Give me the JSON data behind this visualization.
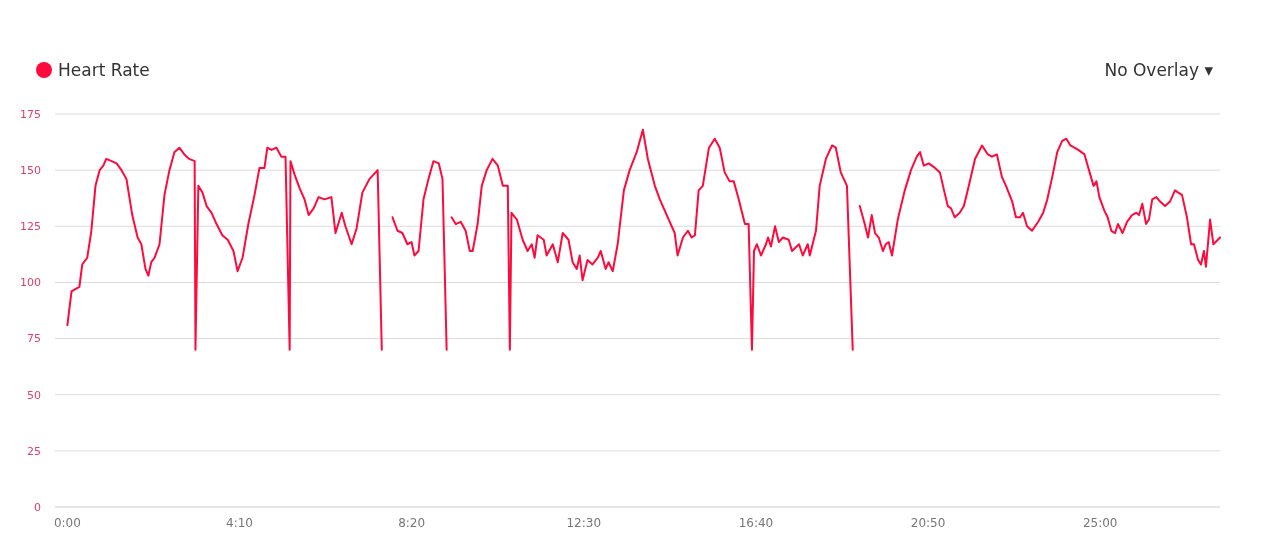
{
  "chart_data": {
    "type": "line",
    "legend": "top left",
    "grid": "y",
    "annotations": [
      "No Overlay ▾"
    ],
    "xlim": [
      -0.3,
      27.9
    ],
    "xticks": [
      {
        "value": 0,
        "label": "0:00"
      },
      {
        "value": 4.1667,
        "label": "4:10"
      },
      {
        "value": 8.3333,
        "label": "8:20"
      },
      {
        "value": 12.5,
        "label": "12:30"
      },
      {
        "value": 16.6667,
        "label": "16:40"
      },
      {
        "value": 20.8333,
        "label": "20:50"
      },
      {
        "value": 25,
        "label": "25:00"
      }
    ],
    "ylim": [
      0,
      175
    ],
    "yticks": [
      0,
      25,
      50,
      75,
      100,
      125,
      150,
      175
    ],
    "series": [
      {
        "name": "Heart Rate",
        "color": "#ff0a3c",
        "x": [
          0,
          0.1,
          0.19,
          0.29,
          0.36,
          0.48,
          0.58,
          0.68,
          0.78,
          0.87,
          0.94,
          1.07,
          1.19,
          1.31,
          1.43,
          1.57,
          1.7,
          1.79,
          1.89,
          1.96,
          2.03,
          2.11,
          2.23,
          2.35,
          2.47,
          2.59,
          2.71,
          2.83,
          2.95,
          3.08,
          3.1,
          3.17,
          3.27,
          3.37,
          3.49,
          3.61,
          3.75,
          3.88,
          4.02,
          4.12,
          4.24,
          4.38,
          4.53,
          4.65,
          4.77,
          4.84,
          4.94,
          5.06,
          5.18,
          5.28,
          5.38,
          5.4,
          5.5,
          5.62,
          5.74,
          5.84,
          5.96,
          6.08,
          6.22,
          6.39,
          6.49,
          6.64,
          6.73,
          6.88,
          7,
          7.14,
          7.31,
          7.51,
          7.61,
          7.74,
          7.87,
          7.99,
          8.11,
          8.23,
          8.33,
          8.4,
          8.5,
          8.62,
          8.74,
          8.86,
          8.99,
          9.08,
          9.18,
          9.24,
          9.3,
          9.4,
          9.52,
          9.64,
          9.74,
          9.81,
          9.93,
          10.03,
          10.15,
          10.29,
          10.42,
          10.54,
          10.66,
          10.71,
          10.75,
          10.88,
          11.02,
          11.14,
          11.24,
          11.31,
          11.38,
          11.53,
          11.6,
          11.75,
          11.87,
          11.99,
          12.13,
          12.23,
          12.33,
          12.4,
          12.47,
          12.59,
          12.71,
          12.84,
          12.91,
          13.03,
          13.1,
          13.2,
          13.32,
          13.47,
          13.61,
          13.78,
          13.93,
          14.05,
          14.22,
          14.34,
          14.46,
          14.58,
          14.7,
          14.77,
          14.9,
          15.02,
          15.11,
          15.19,
          15.28,
          15.38,
          15.53,
          15.67,
          15.79,
          15.91,
          16.03,
          16.13,
          16.25,
          16.4,
          16.49,
          16.57,
          16.62,
          16.69,
          16.79,
          16.91,
          16.96,
          17.03,
          17.13,
          17.22,
          17.32,
          17.46,
          17.54,
          17.71,
          17.8,
          17.92,
          17.97,
          18.12,
          18.21,
          18.36,
          18.51,
          18.6,
          18.72,
          18.87,
          19.01,
          19.1,
          19.18,
          19.3,
          19.38,
          19.47,
          19.55,
          19.64,
          19.74,
          19.81,
          19.88,
          19.96,
          20.1,
          20.27,
          20.42,
          20.56,
          20.64,
          20.73,
          20.85,
          21,
          21.12,
          21.22,
          21.31,
          21.39,
          21.48,
          21.6,
          21.7,
          21.82,
          21.97,
          22.14,
          22.28,
          22.38,
          22.5,
          22.62,
          22.72,
          22.87,
          22.96,
          23.06,
          23.13,
          23.23,
          23.35,
          23.5,
          23.62,
          23.72,
          23.84,
          23.96,
          24.08,
          24.18,
          24.28,
          24.47,
          24.62,
          24.76,
          24.84,
          24.91,
          24.98,
          25.1,
          25.18,
          25.27,
          25.36,
          25.43,
          25.54,
          25.65,
          25.77,
          25.87,
          25.94,
          26.02,
          26.11,
          26.18,
          26.26,
          26.36,
          26.45,
          26.57,
          26.69,
          26.81,
          26.89,
          26.98,
          27.1,
          27.2,
          27.27,
          27.37,
          27.44,
          27.51,
          27.56,
          27.66,
          27.74,
          27.9
        ],
        "values": [
          81,
          96,
          97,
          98,
          108,
          111,
          123,
          143,
          150,
          152,
          155,
          154,
          153,
          150,
          146,
          130,
          120,
          117,
          106,
          103,
          109,
          111,
          117,
          139,
          150,
          158,
          160,
          157,
          155,
          154,
          70,
          143,
          140,
          134,
          131,
          126,
          121,
          119,
          114,
          105,
          111,
          126,
          139,
          151,
          151,
          160,
          159,
          160,
          156,
          156,
          70,
          154,
          148,
          142,
          137,
          130,
          133,
          138,
          137,
          138,
          122,
          131,
          125,
          117,
          124,
          140,
          146,
          150,
          70,
          null,
          129,
          123,
          122,
          117,
          118,
          112,
          114,
          137,
          146,
          154,
          153,
          146,
          70,
          null,
          129,
          126,
          127,
          123,
          114,
          114,
          126,
          143,
          150,
          155,
          152,
          143,
          143,
          70,
          131,
          128,
          119,
          114,
          117,
          111,
          121,
          119,
          112,
          117,
          109,
          122,
          119,
          109,
          106,
          112,
          101,
          110,
          108,
          111,
          114,
          106,
          109,
          105,
          117,
          141,
          150,
          158,
          168,
          155,
          143,
          137,
          132,
          127,
          122,
          112,
          120,
          123,
          120,
          121,
          141,
          143,
          160,
          164,
          160,
          149,
          145,
          145,
          137,
          126,
          126,
          70,
          114,
          117,
          112,
          117,
          120,
          116,
          125,
          118,
          120,
          119,
          114,
          117,
          112,
          117,
          112,
          123,
          143,
          155,
          161,
          160,
          149,
          143,
          70,
          null,
          134,
          126,
          120,
          130,
          122,
          120,
          114,
          117,
          118,
          112,
          128,
          141,
          150,
          156,
          158,
          152,
          153,
          151,
          149,
          141,
          134,
          133,
          129,
          131,
          134,
          143,
          155,
          161,
          157,
          156,
          157,
          147,
          143,
          136,
          129,
          129,
          131,
          125,
          123,
          127,
          131,
          137,
          147,
          158,
          163,
          164,
          161,
          159,
          157,
          148,
          143,
          145,
          138,
          132,
          129,
          123,
          122,
          126,
          122,
          127,
          130,
          131,
          130,
          135,
          126,
          128,
          137,
          138,
          136,
          134,
          136,
          141,
          140,
          139,
          129,
          117,
          117,
          110,
          108,
          114,
          107,
          128,
          117,
          120
        ]
      }
    ]
  }
}
